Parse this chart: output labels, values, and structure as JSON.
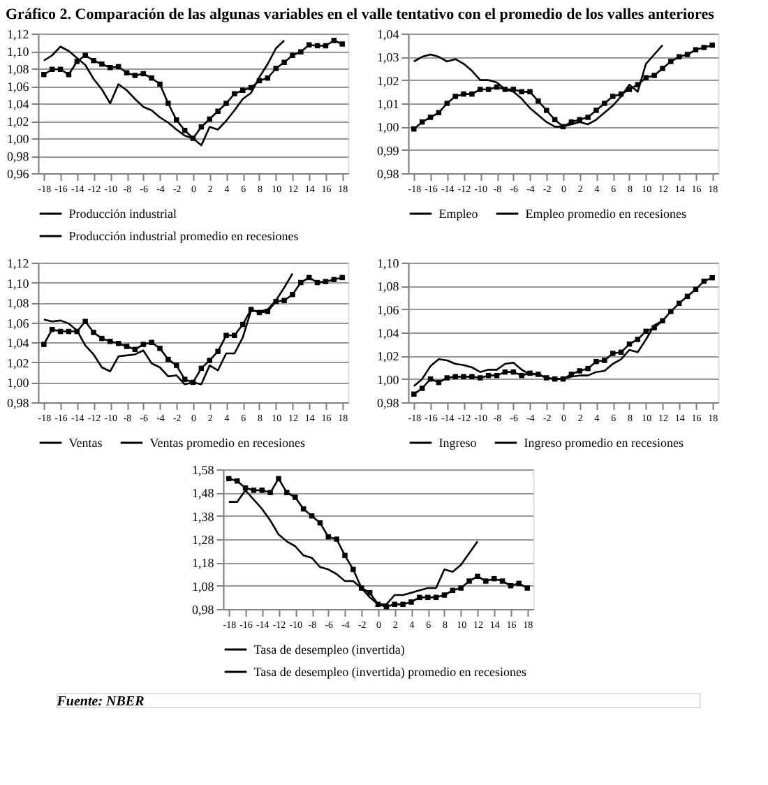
{
  "chart_data": [
    {
      "type": "line",
      "title": "Gráfico 2. Comparación de las algunas variables en el valle tentativo con el promedio de los valles anteriores",
      "x": [
        -18,
        -17,
        -16,
        -15,
        -14,
        -13,
        -12,
        -11,
        -10,
        -9,
        -8,
        -7,
        -6,
        -5,
        -4,
        -3,
        -2,
        -1,
        0,
        1,
        2,
        3,
        4,
        5,
        6,
        7,
        8,
        9,
        10,
        11,
        12,
        13,
        14,
        15,
        16,
        17,
        18
      ],
      "xlim": [
        -18.7,
        18.7
      ],
      "xticks": [
        -18,
        -16,
        -14,
        -12,
        -10,
        -8,
        -6,
        -4,
        -2,
        0,
        2,
        4,
        6,
        8,
        10,
        12,
        14,
        16,
        18
      ],
      "ylim": [
        0.96,
        1.12
      ],
      "yticks": [
        {
          "value": 0.96,
          "label": "0,96"
        },
        {
          "value": 0.98,
          "label": "0,98"
        },
        {
          "value": 1.0,
          "label": "1,00"
        },
        {
          "value": 1.02,
          "label": "1,02"
        },
        {
          "value": 1.04,
          "label": "1,04"
        },
        {
          "value": 1.06,
          "label": "1,06"
        },
        {
          "value": 1.08,
          "label": "1,08"
        },
        {
          "value": 1.1,
          "label": "1,10"
        },
        {
          "value": 1.12,
          "label": "1,12"
        }
      ],
      "grid": "y",
      "legend": "bottom",
      "line_style": "solid",
      "series": [
        {
          "name": "Producción industrial",
          "color": "#000000",
          "marker": "none",
          "values": [
            1.089,
            1.095,
            1.105,
            1.1,
            1.092,
            1.084,
            1.068,
            1.056,
            1.04,
            1.062,
            1.055,
            1.045,
            1.036,
            1.032,
            1.024,
            1.018,
            1.01,
            1.003,
            1.0,
            0.992,
            1.013,
            1.01,
            1.02,
            1.032,
            1.045,
            1.052,
            1.07,
            1.085,
            1.103,
            1.112,
            null,
            null,
            null,
            null,
            null,
            null,
            null
          ]
        },
        {
          "name": "Producción industrial promedio en recesiones",
          "color": "#000000",
          "marker": "square",
          "values": [
            1.073,
            1.079,
            1.079,
            1.073,
            1.088,
            1.095,
            1.089,
            1.085,
            1.081,
            1.082,
            1.075,
            1.072,
            1.074,
            1.069,
            1.062,
            1.04,
            1.021,
            1.009,
            1.0,
            1.013,
            1.022,
            1.031,
            1.04,
            1.051,
            1.055,
            1.058,
            1.066,
            1.069,
            1.08,
            1.087,
            1.095,
            1.099,
            1.107,
            1.106,
            1.106,
            1.112,
            1.108
          ]
        }
      ]
    },
    {
      "type": "line",
      "x": [
        -18,
        -17,
        -16,
        -15,
        -14,
        -13,
        -12,
        -11,
        -10,
        -9,
        -8,
        -7,
        -6,
        -5,
        -4,
        -3,
        -2,
        -1,
        0,
        1,
        2,
        3,
        4,
        5,
        6,
        7,
        8,
        9,
        10,
        11,
        12,
        13,
        14,
        15,
        16,
        17,
        18
      ],
      "xlim": [
        -18.7,
        18.7
      ],
      "xticks": [
        -18,
        -16,
        -14,
        -12,
        -10,
        -8,
        -6,
        -4,
        -2,
        0,
        2,
        4,
        6,
        8,
        10,
        12,
        14,
        16,
        18
      ],
      "ylim": [
        0.98,
        1.04
      ],
      "yticks": [
        {
          "value": 0.98,
          "label": "0,98"
        },
        {
          "value": 0.99,
          "label": "0,99"
        },
        {
          "value": 1.0,
          "label": "1,00"
        },
        {
          "value": 1.01,
          "label": "1,01"
        },
        {
          "value": 1.02,
          "label": "1,02"
        },
        {
          "value": 1.03,
          "label": "1,03"
        },
        {
          "value": 1.04,
          "label": "1,04"
        }
      ],
      "grid": "y",
      "legend": "bottom",
      "line_style": "solid",
      "series": [
        {
          "name": "Empleo",
          "color": "#000000",
          "marker": "none",
          "values": [
            1.028,
            1.03,
            1.031,
            1.03,
            1.028,
            1.029,
            1.027,
            1.024,
            1.02,
            1.02,
            1.019,
            1.016,
            1.015,
            1.012,
            1.008,
            1.005,
            1.002,
            1.0,
            1.0,
            1.001,
            1.002,
            1.001,
            1.003,
            1.006,
            1.009,
            1.013,
            1.018,
            1.015,
            1.027,
            1.031,
            1.035,
            null,
            null,
            null,
            null,
            null,
            null
          ]
        },
        {
          "name": "Empleo promedio en recesiones",
          "color": "#000000",
          "marker": "square",
          "values": [
            0.999,
            1.002,
            1.004,
            1.006,
            1.01,
            1.013,
            1.014,
            1.014,
            1.016,
            1.016,
            1.017,
            1.016,
            1.016,
            1.015,
            1.015,
            1.011,
            1.007,
            1.003,
            1.0,
            1.002,
            1.003,
            1.004,
            1.007,
            1.01,
            1.013,
            1.014,
            1.016,
            1.018,
            1.021,
            1.022,
            1.025,
            1.028,
            1.03,
            1.031,
            1.033,
            1.034,
            1.035
          ]
        }
      ]
    },
    {
      "type": "line",
      "x": [
        -18,
        -17,
        -16,
        -15,
        -14,
        -13,
        -12,
        -11,
        -10,
        -9,
        -8,
        -7,
        -6,
        -5,
        -4,
        -3,
        -2,
        -1,
        0,
        1,
        2,
        3,
        4,
        5,
        6,
        7,
        8,
        9,
        10,
        11,
        12,
        13,
        14,
        15,
        16,
        17,
        18
      ],
      "xlim": [
        -18.7,
        18.7
      ],
      "xticks": [
        -18,
        -16,
        -14,
        -12,
        -10,
        -8,
        -6,
        -4,
        -2,
        0,
        2,
        4,
        6,
        8,
        10,
        12,
        14,
        16,
        18
      ],
      "ylim": [
        0.98,
        1.12
      ],
      "yticks": [
        {
          "value": 0.98,
          "label": "0,98"
        },
        {
          "value": 1.0,
          "label": "1,00"
        },
        {
          "value": 1.02,
          "label": "1,02"
        },
        {
          "value": 1.04,
          "label": "1,04"
        },
        {
          "value": 1.06,
          "label": "1,06"
        },
        {
          "value": 1.08,
          "label": "1,08"
        },
        {
          "value": 1.1,
          "label": "1,10"
        },
        {
          "value": 1.12,
          "label": "1,12"
        }
      ],
      "grid": "y",
      "legend": "bottom",
      "line_style": "solid",
      "series": [
        {
          "name": "Ventas",
          "color": "#000000",
          "marker": "none",
          "values": [
            1.063,
            1.061,
            1.062,
            1.059,
            1.052,
            1.037,
            1.028,
            1.015,
            1.011,
            1.026,
            1.027,
            1.028,
            1.032,
            1.019,
            1.015,
            1.006,
            1.007,
            0.998,
            1.0,
            0.998,
            1.017,
            1.012,
            1.029,
            1.029,
            1.045,
            1.072,
            1.071,
            1.073,
            1.082,
            1.095,
            1.109,
            null,
            null,
            null,
            null,
            null,
            null
          ]
        },
        {
          "name": "Ventas promedio en recesiones",
          "color": "#000000",
          "marker": "square",
          "values": [
            1.038,
            1.053,
            1.051,
            1.051,
            1.051,
            1.061,
            1.05,
            1.044,
            1.041,
            1.039,
            1.036,
            1.033,
            1.038,
            1.04,
            1.034,
            1.023,
            1.017,
            1.003,
            1.0,
            1.014,
            1.022,
            1.031,
            1.047,
            1.047,
            1.058,
            1.073,
            1.07,
            1.071,
            1.081,
            1.082,
            1.088,
            1.1,
            1.105,
            1.1,
            1.101,
            1.103,
            1.105
          ]
        }
      ]
    },
    {
      "type": "line",
      "x": [
        -18,
        -17,
        -16,
        -15,
        -14,
        -13,
        -12,
        -11,
        -10,
        -9,
        -8,
        -7,
        -6,
        -5,
        -4,
        -3,
        -2,
        -1,
        0,
        1,
        2,
        3,
        4,
        5,
        6,
        7,
        8,
        9,
        10,
        11,
        12,
        13,
        14,
        15,
        16,
        17,
        18
      ],
      "xlim": [
        -18.7,
        18.7
      ],
      "xticks": [
        -18,
        -16,
        -14,
        -12,
        -10,
        -8,
        -6,
        -4,
        -2,
        0,
        2,
        4,
        6,
        8,
        10,
        12,
        14,
        16,
        18
      ],
      "ylim": [
        0.98,
        1.1
      ],
      "yticks": [
        {
          "value": 0.98,
          "label": "0,98"
        },
        {
          "value": 1.0,
          "label": "1,00"
        },
        {
          "value": 1.02,
          "label": "1,02"
        },
        {
          "value": 1.04,
          "label": "1,04"
        },
        {
          "value": 1.06,
          "label": "1,06"
        },
        {
          "value": 1.08,
          "label": "1,08"
        },
        {
          "value": 1.1,
          "label": "1,10"
        }
      ],
      "grid": "y",
      "legend": "bottom",
      "line_style": "solid",
      "series": [
        {
          "name": "Ingreso",
          "color": "#000000",
          "marker": "none",
          "values": [
            0.994,
            1.0,
            1.011,
            1.017,
            1.016,
            1.013,
            1.012,
            1.01,
            1.006,
            1.008,
            1.008,
            1.013,
            1.014,
            1.008,
            1.004,
            1.004,
            1.001,
            1.0,
            1.0,
            1.002,
            1.003,
            1.003,
            1.006,
            1.007,
            1.013,
            1.017,
            1.025,
            1.023,
            1.034,
            1.046,
            1.05,
            null,
            null,
            null,
            null,
            null,
            null
          ]
        },
        {
          "name": "Ingreso promedio en recesiones",
          "color": "#000000",
          "marker": "square",
          "values": [
            0.987,
            0.992,
            1.0,
            0.997,
            1.001,
            1.002,
            1.002,
            1.002,
            1.001,
            1.003,
            1.003,
            1.006,
            1.006,
            1.003,
            1.005,
            1.004,
            1.001,
            1.0,
            1.0,
            1.004,
            1.007,
            1.009,
            1.015,
            1.016,
            1.022,
            1.023,
            1.03,
            1.034,
            1.041,
            1.044,
            1.05,
            1.058,
            1.065,
            1.071,
            1.077,
            1.084,
            1.087
          ]
        }
      ]
    },
    {
      "type": "line",
      "x": [
        -18,
        -17,
        -16,
        -15,
        -14,
        -13,
        -12,
        -11,
        -10,
        -9,
        -8,
        -7,
        -6,
        -5,
        -4,
        -3,
        -2,
        -1,
        0,
        1,
        2,
        3,
        4,
        5,
        6,
        7,
        8,
        9,
        10,
        11,
        12,
        13,
        14,
        15,
        16,
        17,
        18
      ],
      "xlim": [
        -18.7,
        18.7
      ],
      "xticks": [
        -18,
        -16,
        -14,
        -12,
        -10,
        -8,
        -6,
        -4,
        -2,
        0,
        2,
        4,
        6,
        8,
        10,
        12,
        14,
        16,
        18
      ],
      "ylim": [
        0.98,
        1.58
      ],
      "yticks": [
        {
          "value": 0.98,
          "label": "0,98"
        },
        {
          "value": 1.08,
          "label": "1,08"
        },
        {
          "value": 1.18,
          "label": "1,18"
        },
        {
          "value": 1.28,
          "label": "1,28"
        },
        {
          "value": 1.38,
          "label": "1,38"
        },
        {
          "value": 1.48,
          "label": "1,48"
        },
        {
          "value": 1.58,
          "label": "1,58"
        }
      ],
      "grid": "y",
      "legend": "bottom",
      "line_style": "solid",
      "annotations": [
        "Fuente: NBER"
      ],
      "series": [
        {
          "name": "Tasa de desempleo (invertida)",
          "color": "#000000",
          "marker": "none",
          "values": [
            1.44,
            1.44,
            1.49,
            1.45,
            1.41,
            1.36,
            1.3,
            1.27,
            1.25,
            1.21,
            1.2,
            1.16,
            1.15,
            1.13,
            1.1,
            1.1,
            1.07,
            1.03,
            1.0,
            1.0,
            1.04,
            1.04,
            1.05,
            1.06,
            1.07,
            1.07,
            1.15,
            1.14,
            1.17,
            1.22,
            1.27,
            null,
            null,
            null,
            null,
            null,
            null
          ]
        },
        {
          "name": "Tasa de desempleo (invertida) promedio en recesiones",
          "color": "#000000",
          "marker": "square",
          "values": [
            1.54,
            1.53,
            1.5,
            1.49,
            1.49,
            1.48,
            1.54,
            1.48,
            1.46,
            1.41,
            1.38,
            1.35,
            1.29,
            1.28,
            1.21,
            1.15,
            1.07,
            1.05,
            1.0,
            0.99,
            1.0,
            1.0,
            1.01,
            1.03,
            1.03,
            1.03,
            1.04,
            1.06,
            1.07,
            1.1,
            1.12,
            1.1,
            1.11,
            1.1,
            1.08,
            1.09,
            1.07
          ]
        }
      ]
    }
  ]
}
